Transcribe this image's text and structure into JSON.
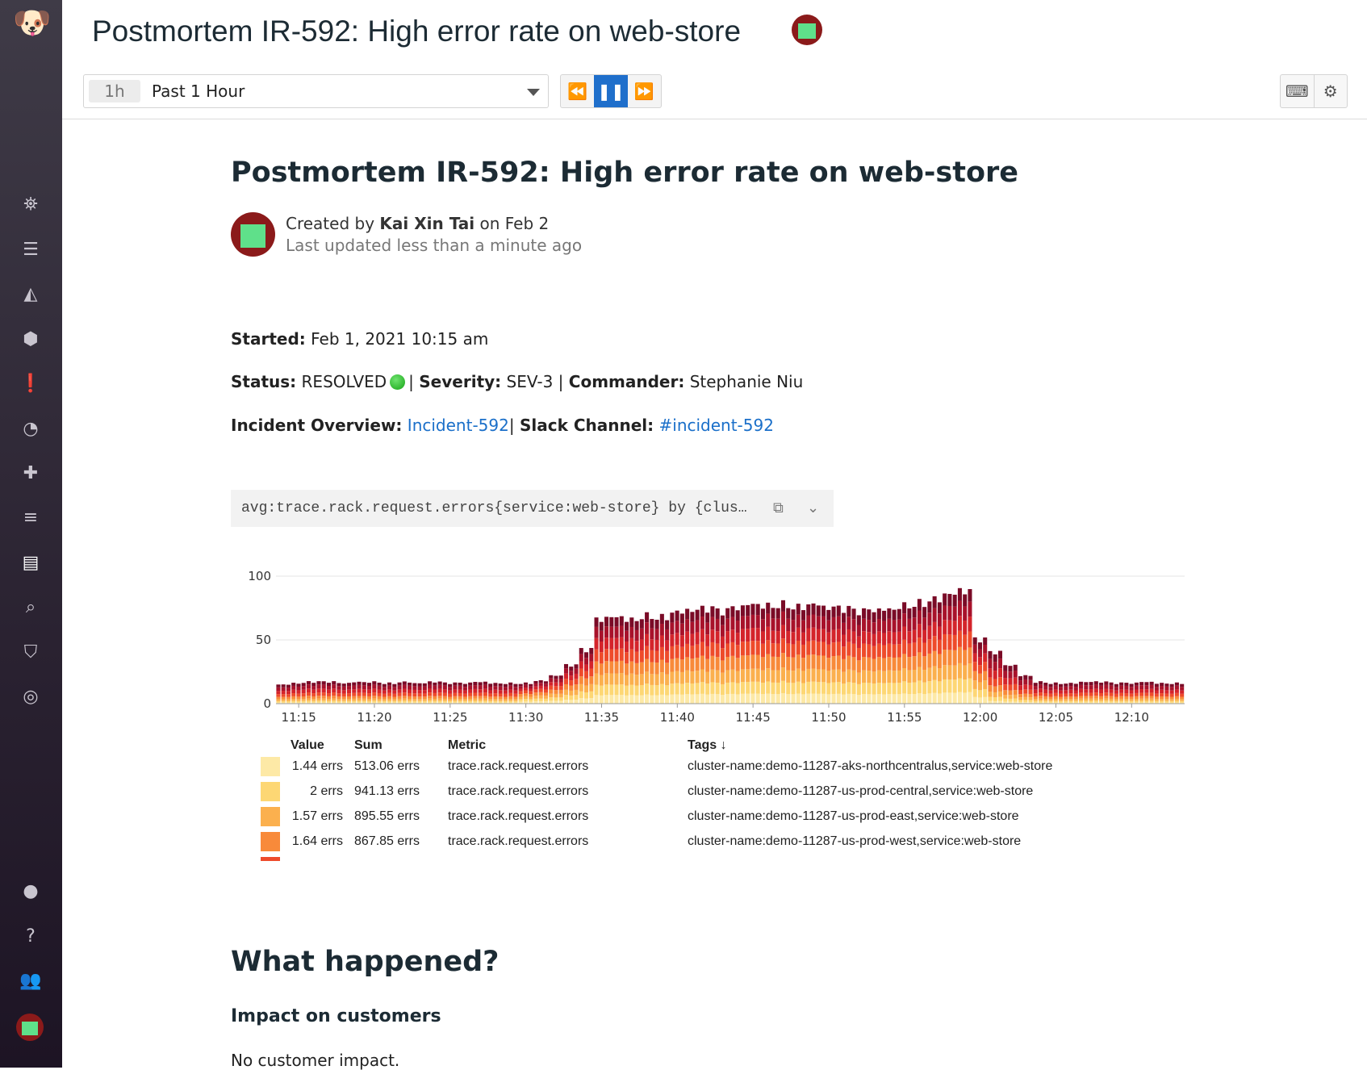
{
  "header": {
    "title": "Postmortem IR-592: High error rate on web-store"
  },
  "toolbar": {
    "time_badge": "1h",
    "time_label": "Past 1 Hour"
  },
  "doc": {
    "title": "Postmortem IR-592: High error rate on web-store",
    "created_prefix": "Created by",
    "author": "Kai Xin Tai",
    "created_suffix": "on Feb 2",
    "updated": "Last updated less than a minute ago",
    "started_label": "Started:",
    "started_value": "Feb 1, 2021 10:15 am",
    "status_label": "Status:",
    "status_value": "RESOLVED",
    "severity_label": "Severity:",
    "severity_value": "SEV-3",
    "commander_label": "Commander:",
    "commander_value": "Stephanie Niu",
    "overview_label": "Incident Overview:",
    "overview_link": "Incident-592",
    "slack_label": "Slack Channel:",
    "slack_link": "#incident-592",
    "query": "avg:trace.rack.request.errors{service:web-store} by {clus…",
    "h2": "What happened?",
    "h3": "Impact on customers",
    "p": "No customer impact."
  },
  "legend": {
    "headers": {
      "value": "Value",
      "sum": "Sum",
      "metric": "Metric",
      "tags": "Tags ↓"
    },
    "rows": [
      {
        "color": "#fde9a6",
        "value": "1.44 errs",
        "sum": "513.06 errs",
        "metric": "trace.rack.request.errors",
        "tags": "cluster-name:demo-11287-aks-northcentralus,service:web-store"
      },
      {
        "color": "#fdd774",
        "value": "2 errs",
        "sum": "941.13 errs",
        "metric": "trace.rack.request.errors",
        "tags": "cluster-name:demo-11287-us-prod-central,service:web-store"
      },
      {
        "color": "#fbb04e",
        "value": "1.57 errs",
        "sum": "895.55 errs",
        "metric": "trace.rack.request.errors",
        "tags": "cluster-name:demo-11287-us-prod-east,service:web-store"
      },
      {
        "color": "#f88a3a",
        "value": "1.64 errs",
        "sum": "867.85 errs",
        "metric": "trace.rack.request.errors",
        "tags": "cluster-name:demo-11287-us-prod-west,service:web-store"
      },
      {
        "color": "#ee4b2b",
        "value": "",
        "sum": "",
        "metric": "",
        "tags": ""
      }
    ]
  },
  "chart_data": {
    "type": "bar",
    "stacked": true,
    "ylim": [
      0,
      100
    ],
    "yticks": [
      "0",
      "50",
      "100"
    ],
    "xticks": [
      "11:15",
      "11:20",
      "11:25",
      "11:30",
      "11:35",
      "11:40",
      "11:45",
      "11:50",
      "11:55",
      "12:00",
      "12:05",
      "12:10"
    ],
    "x": [
      "11:14",
      "11:15",
      "11:16",
      "11:17",
      "11:18",
      "11:19",
      "11:20",
      "11:21",
      "11:22",
      "11:23",
      "11:24",
      "11:25",
      "11:26",
      "11:27",
      "11:28",
      "11:29",
      "11:30",
      "11:31",
      "11:32",
      "11:33",
      "11:34",
      "11:35",
      "11:36",
      "11:37",
      "11:38",
      "11:39",
      "11:40",
      "11:41",
      "11:42",
      "11:43",
      "11:44",
      "11:45",
      "11:46",
      "11:47",
      "11:48",
      "11:49",
      "11:50",
      "11:51",
      "11:52",
      "11:53",
      "11:54",
      "11:55",
      "11:56",
      "11:57",
      "11:58",
      "11:59",
      "12:00",
      "12:01",
      "12:02",
      "12:03",
      "12:04",
      "12:05",
      "12:06",
      "12:07",
      "12:08",
      "12:09",
      "12:10",
      "12:11",
      "12:12",
      "12:13"
    ],
    "totals": [
      15,
      16,
      17,
      17,
      16,
      17,
      17,
      16,
      17,
      16,
      17,
      16,
      16,
      17,
      16,
      16,
      16,
      18,
      22,
      30,
      42,
      66,
      68,
      66,
      69,
      68,
      72,
      73,
      74,
      72,
      75,
      78,
      77,
      78,
      76,
      78,
      75,
      74,
      72,
      73,
      74,
      77,
      79,
      82,
      86,
      88,
      50,
      40,
      30,
      22,
      17,
      16,
      16,
      17,
      17,
      16,
      16,
      17,
      16,
      16
    ],
    "series_colors": [
      "#fde9a6",
      "#fdd774",
      "#fbb04e",
      "#f88a3a",
      "#ee4b2b",
      "#d4242b",
      "#a8122b",
      "#7a0b27"
    ],
    "grid": true
  }
}
